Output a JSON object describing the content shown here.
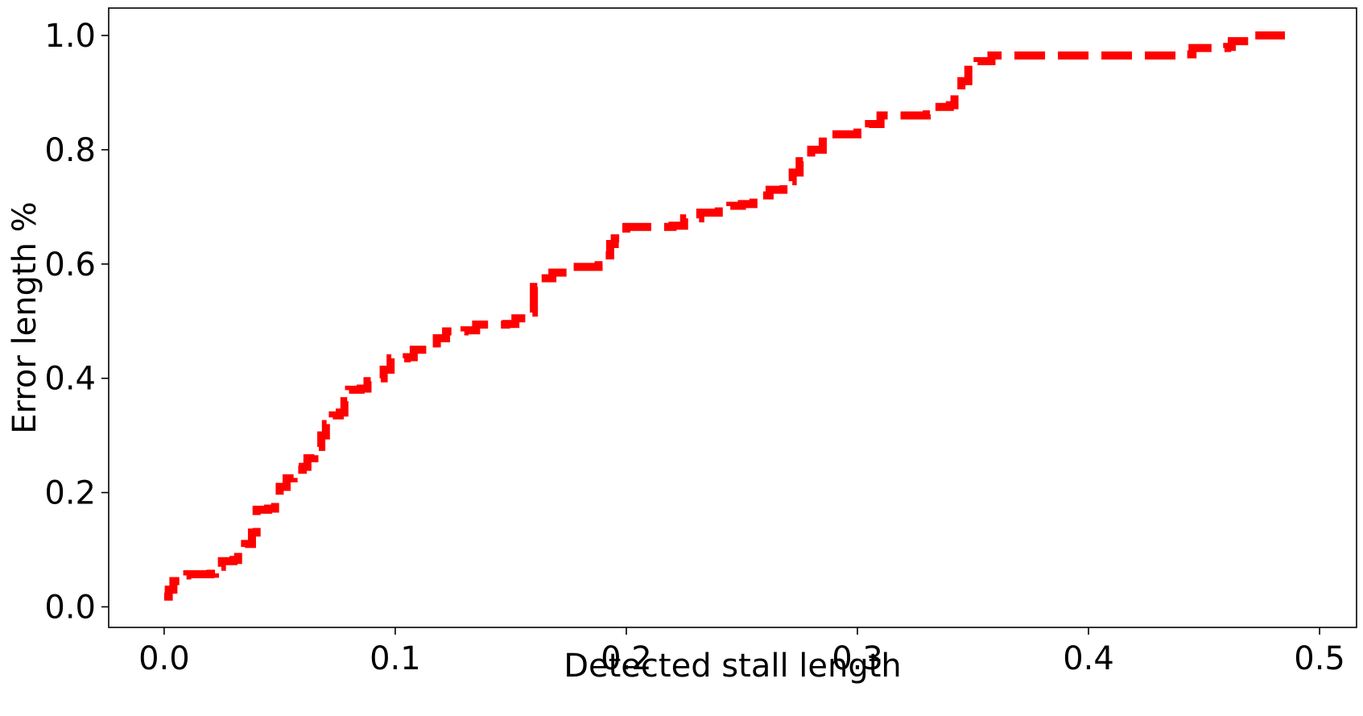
{
  "chart_data": {
    "type": "line",
    "title": "",
    "xlabel": "Detected stall length",
    "ylabel": "Error length %",
    "xlim": [
      -0.024,
      0.516
    ],
    "ylim": [
      -0.036,
      1.048
    ],
    "xticks": [
      0.0,
      0.1,
      0.2,
      0.3,
      0.4,
      0.5
    ],
    "xtick_labels": [
      "0.0",
      "0.1",
      "0.2",
      "0.3",
      "0.4",
      "0.5"
    ],
    "yticks": [
      0.0,
      0.2,
      0.4,
      0.6,
      0.8,
      1.0
    ],
    "ytick_labels": [
      "0.0",
      "0.2",
      "0.4",
      "0.6",
      "0.8",
      "1.0"
    ],
    "grid": false,
    "legend": "none",
    "series": [
      {
        "color": "#ff0000",
        "linestyle": "dashed",
        "step": true,
        "points": [
          [
            0.0,
            0.018
          ],
          [
            0.002,
            0.03
          ],
          [
            0.004,
            0.045
          ],
          [
            0.007,
            0.055
          ],
          [
            0.01,
            0.057
          ],
          [
            0.02,
            0.058
          ],
          [
            0.022,
            0.07
          ],
          [
            0.025,
            0.08
          ],
          [
            0.03,
            0.082
          ],
          [
            0.032,
            0.095
          ],
          [
            0.035,
            0.11
          ],
          [
            0.038,
            0.13
          ],
          [
            0.04,
            0.17
          ],
          [
            0.045,
            0.172
          ],
          [
            0.048,
            0.19
          ],
          [
            0.05,
            0.21
          ],
          [
            0.053,
            0.225
          ],
          [
            0.056,
            0.24
          ],
          [
            0.06,
            0.245
          ],
          [
            0.062,
            0.26
          ],
          [
            0.065,
            0.28
          ],
          [
            0.068,
            0.3
          ],
          [
            0.07,
            0.32
          ],
          [
            0.073,
            0.335
          ],
          [
            0.076,
            0.34
          ],
          [
            0.078,
            0.36
          ],
          [
            0.08,
            0.38
          ],
          [
            0.085,
            0.382
          ],
          [
            0.088,
            0.395
          ],
          [
            0.092,
            0.4
          ],
          [
            0.095,
            0.415
          ],
          [
            0.098,
            0.435
          ],
          [
            0.105,
            0.437
          ],
          [
            0.108,
            0.45
          ],
          [
            0.115,
            0.452
          ],
          [
            0.118,
            0.47
          ],
          [
            0.122,
            0.482
          ],
          [
            0.13,
            0.484
          ],
          [
            0.135,
            0.494
          ],
          [
            0.148,
            0.495
          ],
          [
            0.152,
            0.505
          ],
          [
            0.157,
            0.515
          ],
          [
            0.16,
            0.56
          ],
          [
            0.163,
            0.575
          ],
          [
            0.168,
            0.585
          ],
          [
            0.175,
            0.595
          ],
          [
            0.188,
            0.598
          ],
          [
            0.19,
            0.615
          ],
          [
            0.193,
            0.635
          ],
          [
            0.195,
            0.645
          ],
          [
            0.2,
            0.665
          ],
          [
            0.22,
            0.667
          ],
          [
            0.225,
            0.68
          ],
          [
            0.232,
            0.69
          ],
          [
            0.24,
            0.692
          ],
          [
            0.245,
            0.702
          ],
          [
            0.25,
            0.705
          ],
          [
            0.255,
            0.72
          ],
          [
            0.262,
            0.73
          ],
          [
            0.268,
            0.745
          ],
          [
            0.272,
            0.76
          ],
          [
            0.275,
            0.78
          ],
          [
            0.28,
            0.8
          ],
          [
            0.285,
            0.827
          ],
          [
            0.3,
            0.83
          ],
          [
            0.305,
            0.845
          ],
          [
            0.31,
            0.86
          ],
          [
            0.33,
            0.862
          ],
          [
            0.332,
            0.875
          ],
          [
            0.34,
            0.878
          ],
          [
            0.342,
            0.9
          ],
          [
            0.345,
            0.92
          ],
          [
            0.348,
            0.94
          ],
          [
            0.352,
            0.955
          ],
          [
            0.358,
            0.965
          ],
          [
            0.44,
            0.967
          ],
          [
            0.445,
            0.978
          ],
          [
            0.46,
            0.98
          ],
          [
            0.462,
            0.99
          ],
          [
            0.47,
            1.0
          ],
          [
            0.485,
            1.0
          ]
        ]
      }
    ]
  }
}
